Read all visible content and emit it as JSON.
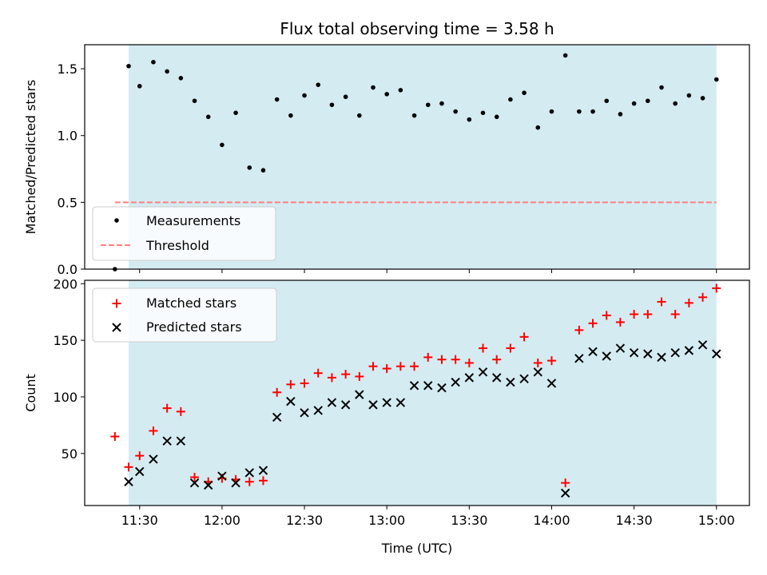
{
  "title": "Flux total observing time = 3.58 h",
  "colors": {
    "observed_span": "#add8e6",
    "threshold": "#ff7f7f",
    "measurements": "#000000",
    "matched": "#ff0000",
    "predicted": "#000000"
  },
  "chart_data": [
    {
      "type": "scatter",
      "ylabel": "Matched/Predicted stars",
      "xlim": [
        "11:10",
        "15:12"
      ],
      "ylim": [
        0,
        1.68
      ],
      "yticks": [
        0.0,
        0.5,
        1.0,
        1.5
      ],
      "ytick_labels": [
        "0.0",
        "0.5",
        "1.0",
        "1.5"
      ],
      "grid": false,
      "legend": {
        "location": "lower left",
        "entries": [
          "Measurements",
          "Threshold"
        ]
      },
      "shaded_span": [
        "11:26",
        "15:00"
      ],
      "threshold": {
        "name": "Threshold",
        "y": 0.5,
        "x": [
          "11:21",
          "15:00"
        ]
      },
      "series": [
        {
          "name": "Measurements",
          "points": [
            [
              "11:21",
              0.0
            ],
            [
              "11:26",
              1.52
            ],
            [
              "11:30",
              1.37
            ],
            [
              "11:35",
              1.55
            ],
            [
              "11:40",
              1.48
            ],
            [
              "11:45",
              1.43
            ],
            [
              "11:50",
              1.26
            ],
            [
              "11:55",
              1.14
            ],
            [
              "12:00",
              0.93
            ],
            [
              "12:05",
              1.17
            ],
            [
              "12:10",
              0.76
            ],
            [
              "12:15",
              0.74
            ],
            [
              "12:20",
              1.27
            ],
            [
              "12:25",
              1.15
            ],
            [
              "12:30",
              1.3
            ],
            [
              "12:35",
              1.38
            ],
            [
              "12:40",
              1.23
            ],
            [
              "12:45",
              1.29
            ],
            [
              "12:50",
              1.15
            ],
            [
              "12:55",
              1.36
            ],
            [
              "13:00",
              1.31
            ],
            [
              "13:05",
              1.34
            ],
            [
              "13:10",
              1.15
            ],
            [
              "13:15",
              1.23
            ],
            [
              "13:20",
              1.24
            ],
            [
              "13:25",
              1.18
            ],
            [
              "13:30",
              1.12
            ],
            [
              "13:35",
              1.17
            ],
            [
              "13:40",
              1.14
            ],
            [
              "13:45",
              1.27
            ],
            [
              "13:50",
              1.32
            ],
            [
              "13:55",
              1.06
            ],
            [
              "14:00",
              1.18
            ],
            [
              "14:05",
              1.6
            ],
            [
              "14:10",
              1.18
            ],
            [
              "14:15",
              1.18
            ],
            [
              "14:20",
              1.26
            ],
            [
              "14:25",
              1.16
            ],
            [
              "14:30",
              1.24
            ],
            [
              "14:35",
              1.26
            ],
            [
              "14:40",
              1.36
            ],
            [
              "14:45",
              1.24
            ],
            [
              "14:50",
              1.3
            ],
            [
              "14:55",
              1.28
            ],
            [
              "15:00",
              1.42
            ]
          ]
        }
      ]
    },
    {
      "type": "scatter",
      "xlabel": "Time (UTC)",
      "ylabel": "Count",
      "xlim": [
        "11:10",
        "15:12"
      ],
      "ylim": [
        4,
        203
      ],
      "xticks": [
        "11:30",
        "12:00",
        "12:30",
        "13:00",
        "13:30",
        "14:00",
        "14:30",
        "15:00"
      ],
      "yticks": [
        50,
        100,
        150,
        200
      ],
      "ytick_labels": [
        "50",
        "100",
        "150",
        "200"
      ],
      "grid": false,
      "legend": {
        "location": "upper left",
        "entries": [
          "Matched stars",
          "Predicted stars"
        ]
      },
      "shaded_span": [
        "11:26",
        "15:00"
      ],
      "series": [
        {
          "name": "Matched stars",
          "marker": "+",
          "points": [
            [
              "11:21",
              65
            ],
            [
              "11:26",
              38
            ],
            [
              "11:30",
              48
            ],
            [
              "11:35",
              70
            ],
            [
              "11:40",
              90
            ],
            [
              "11:45",
              87
            ],
            [
              "11:50",
              29
            ],
            [
              "11:55",
              25
            ],
            [
              "12:00",
              28
            ],
            [
              "12:05",
              27
            ],
            [
              "12:10",
              25
            ],
            [
              "12:15",
              26
            ],
            [
              "12:20",
              104
            ],
            [
              "12:25",
              111
            ],
            [
              "12:30",
              112
            ],
            [
              "12:35",
              121
            ],
            [
              "12:40",
              117
            ],
            [
              "12:45",
              120
            ],
            [
              "12:50",
              118
            ],
            [
              "12:55",
              127
            ],
            [
              "13:00",
              125
            ],
            [
              "13:05",
              127
            ],
            [
              "13:10",
              127
            ],
            [
              "13:15",
              135
            ],
            [
              "13:20",
              133
            ],
            [
              "13:25",
              133
            ],
            [
              "13:30",
              130
            ],
            [
              "13:35",
              143
            ],
            [
              "13:40",
              133
            ],
            [
              "13:45",
              143
            ],
            [
              "13:50",
              153
            ],
            [
              "13:55",
              130
            ],
            [
              "14:00",
              132
            ],
            [
              "14:05",
              24
            ],
            [
              "14:10",
              159
            ],
            [
              "14:15",
              165
            ],
            [
              "14:20",
              172
            ],
            [
              "14:25",
              166
            ],
            [
              "14:30",
              173
            ],
            [
              "14:35",
              173
            ],
            [
              "14:40",
              184
            ],
            [
              "14:45",
              173
            ],
            [
              "14:50",
              183
            ],
            [
              "14:55",
              188
            ],
            [
              "15:00",
              196
            ]
          ]
        },
        {
          "name": "Predicted stars",
          "marker": "x",
          "points": [
            [
              "11:26",
              25
            ],
            [
              "11:30",
              34
            ],
            [
              "11:35",
              45
            ],
            [
              "11:40",
              61
            ],
            [
              "11:45",
              61
            ],
            [
              "11:50",
              24
            ],
            [
              "11:55",
              22
            ],
            [
              "12:00",
              30
            ],
            [
              "12:05",
              24
            ],
            [
              "12:10",
              33
            ],
            [
              "12:15",
              35
            ],
            [
              "12:20",
              82
            ],
            [
              "12:25",
              96
            ],
            [
              "12:30",
              86
            ],
            [
              "12:35",
              88
            ],
            [
              "12:40",
              95
            ],
            [
              "12:45",
              93
            ],
            [
              "12:50",
              102
            ],
            [
              "12:55",
              93
            ],
            [
              "13:00",
              95
            ],
            [
              "13:05",
              95
            ],
            [
              "13:10",
              110
            ],
            [
              "13:15",
              110
            ],
            [
              "13:20",
              108
            ],
            [
              "13:25",
              113
            ],
            [
              "13:30",
              117
            ],
            [
              "13:35",
              122
            ],
            [
              "13:40",
              117
            ],
            [
              "13:45",
              113
            ],
            [
              "13:50",
              116
            ],
            [
              "13:55",
              122
            ],
            [
              "14:00",
              112
            ],
            [
              "14:05",
              15
            ],
            [
              "14:10",
              134
            ],
            [
              "14:15",
              140
            ],
            [
              "14:20",
              136
            ],
            [
              "14:25",
              143
            ],
            [
              "14:30",
              139
            ],
            [
              "14:35",
              138
            ],
            [
              "14:40",
              135
            ],
            [
              "14:45",
              139
            ],
            [
              "14:50",
              141
            ],
            [
              "14:55",
              146
            ],
            [
              "15:00",
              138
            ]
          ]
        }
      ]
    }
  ]
}
